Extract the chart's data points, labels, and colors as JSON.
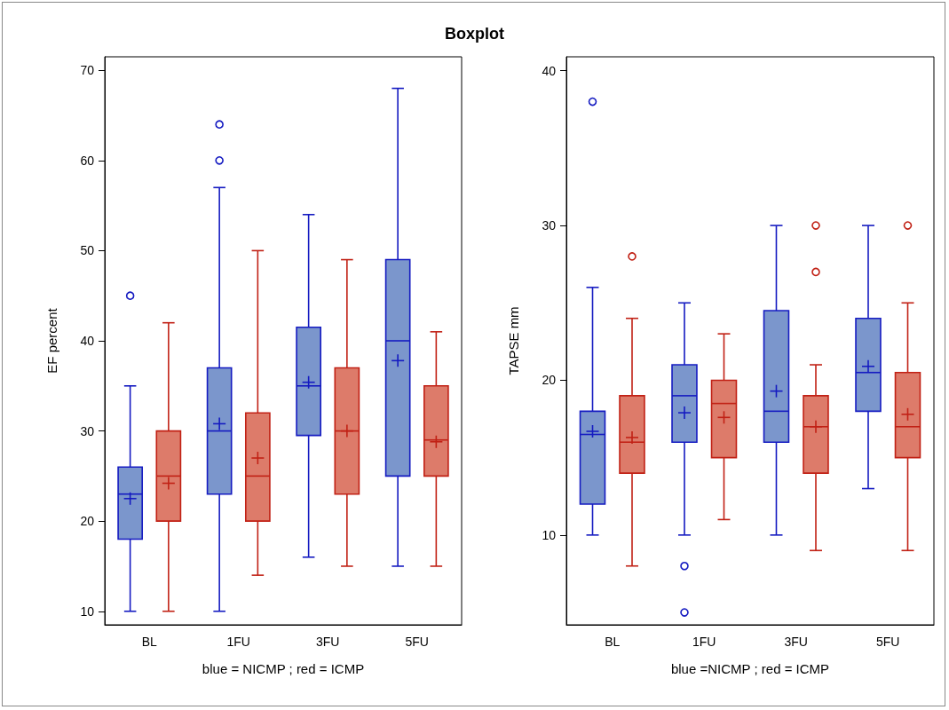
{
  "chart_data": [
    {
      "type": "box",
      "title": "Boxplot",
      "xlabel": "blue = NICMP ; red = ICMP",
      "ylabel": "EF percent",
      "categories": [
        "BL",
        "1FU",
        "3FU",
        "5FU"
      ],
      "ylim": [
        8.5,
        71.5
      ],
      "yticks": [
        10,
        20,
        30,
        40,
        50,
        60,
        70
      ],
      "series": [
        {
          "color": "#7b96cc",
          "boxes": [
            {
              "low": 10,
              "q1": 18,
              "median": 23,
              "q3": 26,
              "high": 35,
              "mean": 22.5,
              "outliers": [
                45
              ]
            },
            {
              "low": 10,
              "q1": 23,
              "median": 30,
              "q3": 37,
              "high": 57,
              "mean": 30.8,
              "outliers": [
                60,
                64
              ]
            },
            {
              "low": 16,
              "q1": 29.5,
              "median": 35,
              "q3": 41.5,
              "high": 54,
              "mean": 35.4
            },
            {
              "low": 15,
              "q1": 25,
              "median": 40,
              "q3": 49,
              "high": 68,
              "mean": 37.8
            }
          ]
        },
        {
          "color": "#dd7b6a",
          "boxes": [
            {
              "low": 10,
              "q1": 20,
              "median": 25,
              "q3": 30,
              "high": 42,
              "mean": 24.2
            },
            {
              "low": 14,
              "q1": 20,
              "median": 25,
              "q3": 32,
              "high": 50,
              "mean": 27
            },
            {
              "low": 15,
              "q1": 23,
              "median": 30,
              "q3": 37,
              "high": 49,
              "mean": 30
            },
            {
              "low": 15,
              "q1": 25,
              "median": 29,
              "q3": 35,
              "high": 41,
              "mean": 28.8
            }
          ]
        }
      ]
    },
    {
      "type": "box",
      "xlabel": "blue =NICMP ; red = ICMP",
      "ylabel": "TAPSE mm",
      "categories": [
        "BL",
        "1FU",
        "3FU",
        "5FU"
      ],
      "ylim": [
        4.2,
        40.9
      ],
      "yticks": [
        10,
        20,
        30,
        40
      ],
      "series": [
        {
          "color": "#7b96cc",
          "boxes": [
            {
              "low": 10,
              "q1": 12,
              "median": 16.5,
              "q3": 18,
              "high": 26,
              "mean": 16.7,
              "outliers": [
                38
              ]
            },
            {
              "low": 10,
              "q1": 16,
              "median": 19,
              "q3": 21,
              "high": 25,
              "mean": 17.9,
              "outliers": [
                8,
                5
              ]
            },
            {
              "low": 10,
              "q1": 16,
              "median": 18,
              "q3": 24.5,
              "high": 30,
              "mean": 19.3
            },
            {
              "low": 13,
              "q1": 18,
              "median": 20.5,
              "q3": 24,
              "high": 30,
              "mean": 20.9
            }
          ]
        },
        {
          "color": "#dd7b6a",
          "boxes": [
            {
              "low": 8,
              "q1": 14,
              "median": 16,
              "q3": 19,
              "high": 24,
              "mean": 16.3,
              "outliers": [
                28
              ]
            },
            {
              "low": 11,
              "q1": 15,
              "median": 18.5,
              "q3": 20,
              "high": 23,
              "mean": 17.6
            },
            {
              "low": 9,
              "q1": 14,
              "median": 17,
              "q3": 19,
              "high": 21,
              "mean": 17,
              "outliers": [
                27,
                30
              ]
            },
            {
              "low": 9,
              "q1": 15,
              "median": 17,
              "q3": 20.5,
              "high": 25,
              "mean": 17.8,
              "outliers": [
                30
              ]
            }
          ]
        }
      ]
    }
  ]
}
